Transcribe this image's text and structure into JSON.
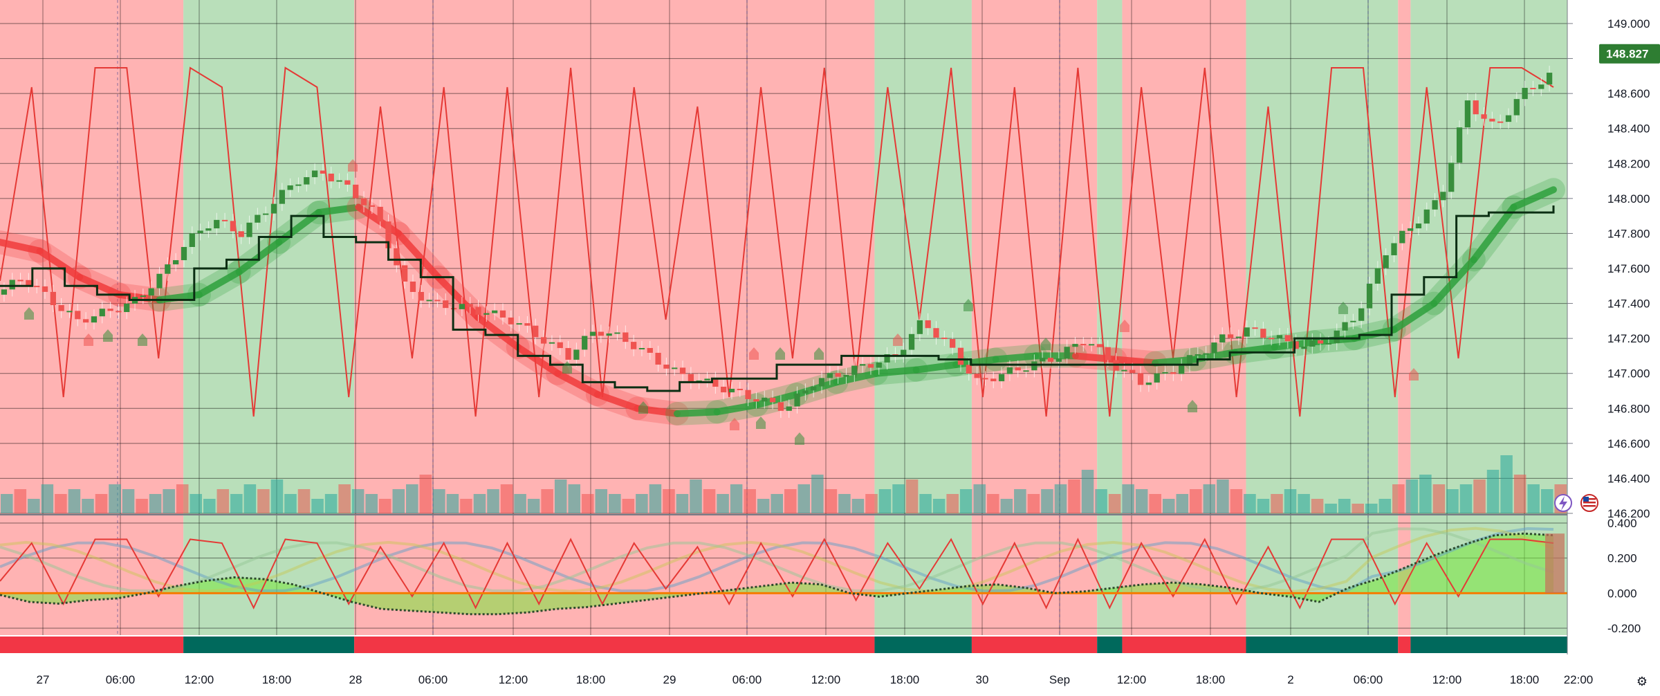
{
  "chart_data": [
    {
      "type": "line",
      "panel": "price",
      "price_axis_ticks": [
        "149.000",
        "148.800",
        "148.600",
        "148.400",
        "148.200",
        "148.000",
        "147.800",
        "147.600",
        "147.400",
        "147.200",
        "147.000",
        "146.800",
        "146.600",
        "146.400",
        "146.200"
      ],
      "ylim": [
        146.2,
        149.1
      ],
      "last_price": "148.827",
      "time_axis_labels": [
        "27",
        "06:00",
        "12:00",
        "18:00",
        "28",
        "06:00",
        "12:00",
        "18:00",
        "29",
        "06:00",
        "12:00",
        "18:00",
        "30",
        "Sep",
        "12:00",
        "18:00",
        "2",
        "06:00",
        "12:00",
        "18:00",
        "22:00"
      ],
      "regime_background": [
        {
          "from": 0,
          "to": 0.117,
          "state": "bear"
        },
        {
          "from": 0.117,
          "to": 0.226,
          "state": "bull"
        },
        {
          "from": 0.226,
          "to": 0.558,
          "state": "bear"
        },
        {
          "from": 0.558,
          "to": 0.62,
          "state": "bull"
        },
        {
          "from": 0.62,
          "to": 0.7,
          "state": "bear"
        },
        {
          "from": 0.7,
          "to": 0.716,
          "state": "bull"
        },
        {
          "from": 0.716,
          "to": 0.795,
          "state": "bear"
        },
        {
          "from": 0.795,
          "to": 0.892,
          "state": "bull"
        },
        {
          "from": 0.892,
          "to": 0.9,
          "state": "bear"
        },
        {
          "from": 0.9,
          "to": 1.0,
          "state": "bull"
        }
      ],
      "series": [
        {
          "role": "close",
          "values": [
            147.45,
            147.55,
            147.42,
            147.3,
            147.35,
            147.4,
            147.55,
            147.75,
            147.88,
            147.8,
            147.95,
            148.1,
            148.15,
            148.05,
            147.9,
            147.5,
            147.4,
            147.38,
            147.35,
            147.3,
            147.2,
            147.1,
            147.25,
            147.2,
            147.1,
            147.0,
            146.95,
            146.9,
            146.85,
            146.8,
            146.95,
            147.0,
            147.05,
            147.1,
            147.3,
            147.15,
            146.95,
            147.0,
            147.05,
            147.1,
            147.2,
            147.05,
            146.95,
            147.0,
            147.1,
            147.2,
            147.25,
            147.2,
            147.15,
            147.2,
            147.35,
            147.7,
            147.85,
            148.0,
            148.55,
            148.4,
            148.6,
            148.7
          ]
        },
        {
          "role": "baseline",
          "values": [
            147.5,
            147.6,
            147.5,
            147.45,
            147.42,
            147.42,
            147.6,
            147.65,
            147.78,
            147.9,
            147.78,
            147.75,
            147.65,
            147.55,
            147.25,
            147.22,
            147.1,
            147.05,
            146.95,
            146.92,
            146.9,
            146.95,
            146.97,
            146.97,
            147.05,
            147.05,
            147.1,
            147.1,
            147.1,
            147.08,
            147.05,
            147.05,
            147.05,
            147.05,
            147.05,
            147.05,
            147.05,
            147.08,
            147.12,
            147.12,
            147.2,
            147.2,
            147.22,
            147.45,
            147.55,
            147.9,
            147.92,
            147.92,
            147.96
          ]
        },
        {
          "role": "smoothed_trend",
          "values": [
            147.75,
            147.7,
            147.55,
            147.45,
            147.42,
            147.45,
            147.58,
            147.75,
            147.92,
            147.95,
            147.8,
            147.55,
            147.32,
            147.15,
            147.0,
            146.88,
            146.8,
            146.77,
            146.78,
            146.82,
            146.88,
            146.95,
            147.0,
            147.02,
            147.05,
            147.08,
            147.1,
            147.1,
            147.08,
            147.06,
            147.08,
            147.12,
            147.15,
            147.18,
            147.2,
            147.25,
            147.4,
            147.65,
            147.95,
            148.05
          ]
        },
        {
          "role": "stochastic",
          "values": [
            0.4,
            0.9,
            0.1,
            0.95,
            0.95,
            0.2,
            0.95,
            0.9,
            0.05,
            0.95,
            0.9,
            0.1,
            0.85,
            0.2,
            0.9,
            0.05,
            0.9,
            0.1,
            0.95,
            0.1,
            0.9,
            0.3,
            0.85,
            0.1,
            0.9,
            0.2,
            0.95,
            0.15,
            0.9,
            0.3,
            0.95,
            0.1,
            0.9,
            0.05,
            0.95,
            0.05,
            0.9,
            0.2,
            0.95,
            0.1,
            0.85,
            0.05,
            0.95,
            0.95,
            0.1,
            0.9,
            0.2,
            0.95,
            0.95,
            0.9
          ]
        }
      ],
      "volume_values": [
        4,
        5,
        3,
        6,
        4,
        5,
        3,
        4,
        6,
        5,
        3,
        4,
        5,
        6,
        4,
        3,
        5,
        4,
        6,
        5,
        7,
        4,
        5,
        3,
        4,
        6,
        5,
        4,
        3,
        5,
        6,
        8,
        5,
        4,
        3,
        4,
        5,
        6,
        4,
        3,
        5,
        7,
        6,
        4,
        5,
        4,
        3,
        4,
        6,
        5,
        4,
        7,
        5,
        4,
        6,
        5,
        3,
        4,
        5,
        6,
        8,
        5,
        4,
        3,
        4,
        5,
        6,
        7,
        4,
        3,
        4,
        5,
        6,
        4,
        3,
        5,
        4,
        5,
        6,
        7,
        9,
        5,
        4,
        6,
        5,
        4,
        3,
        4,
        5,
        6,
        7,
        5,
        4,
        3,
        4,
        5,
        4,
        3,
        2,
        3,
        2,
        2,
        3,
        6,
        7,
        8,
        6,
        5,
        6,
        7,
        9,
        12,
        8,
        6,
        5,
        6
      ]
    },
    {
      "type": "line",
      "panel": "oscillator",
      "osc_axis_ticks": [
        "0.400",
        "0.200",
        "0.000",
        "-0.200"
      ],
      "ylim": [
        -0.24,
        0.4
      ],
      "series": [
        {
          "role": "momentum",
          "values": [
            -0.01,
            -0.05,
            -0.06,
            -0.04,
            -0.03,
            0.0,
            0.04,
            0.07,
            0.09,
            0.08,
            0.05,
            0.0,
            -0.05,
            -0.09,
            -0.1,
            -0.11,
            -0.12,
            -0.12,
            -0.11,
            -0.09,
            -0.08,
            -0.06,
            -0.04,
            -0.02,
            0.0,
            0.02,
            0.04,
            0.06,
            0.05,
            0.0,
            -0.02,
            0.0,
            0.02,
            0.04,
            0.05,
            0.03,
            0.0,
            0.01,
            0.03,
            0.05,
            0.06,
            0.05,
            0.03,
            0.0,
            -0.02,
            -0.05,
            0.03,
            0.08,
            0.15,
            0.22,
            0.28,
            0.33,
            0.34,
            0.33
          ]
        }
      ]
    }
  ],
  "colors": {
    "bear_background": "#ffb3b3",
    "bull_background": "#b9dfba",
    "bull_candle": "#388e3c",
    "bear_candle": "#ef5350",
    "baseline": "#0b2e13",
    "stochastic_line": "#e53935",
    "oscillator_zero": "#f57c00",
    "strip_bull": "#00695c",
    "strip_bear": "#f23645",
    "last_price_badge": "#2e7d32"
  },
  "icons": [
    "lightning-icon",
    "us-flag-icon",
    "gear-icon"
  ]
}
